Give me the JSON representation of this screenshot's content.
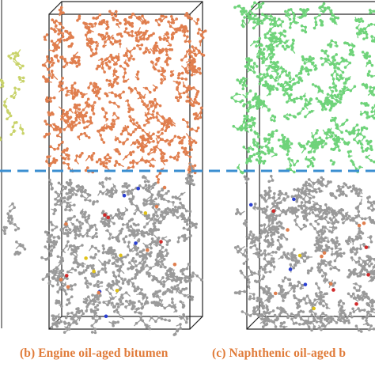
{
  "figure": {
    "panels": [
      {
        "id": "a",
        "caption": "",
        "top_layer_color": "#c9d36a"
      },
      {
        "id": "b",
        "caption": "(b) Engine oil-aged bitumen",
        "top_layer_color": "#e07f4f"
      },
      {
        "id": "c",
        "caption": "(c) Naphthenic oil-aged b",
        "top_layer_color": "#6fd37a"
      }
    ],
    "bitumen_color": "#9a9a9a",
    "caption_color": "#e07b39",
    "interface_line_color": "#3b8fd1"
  }
}
